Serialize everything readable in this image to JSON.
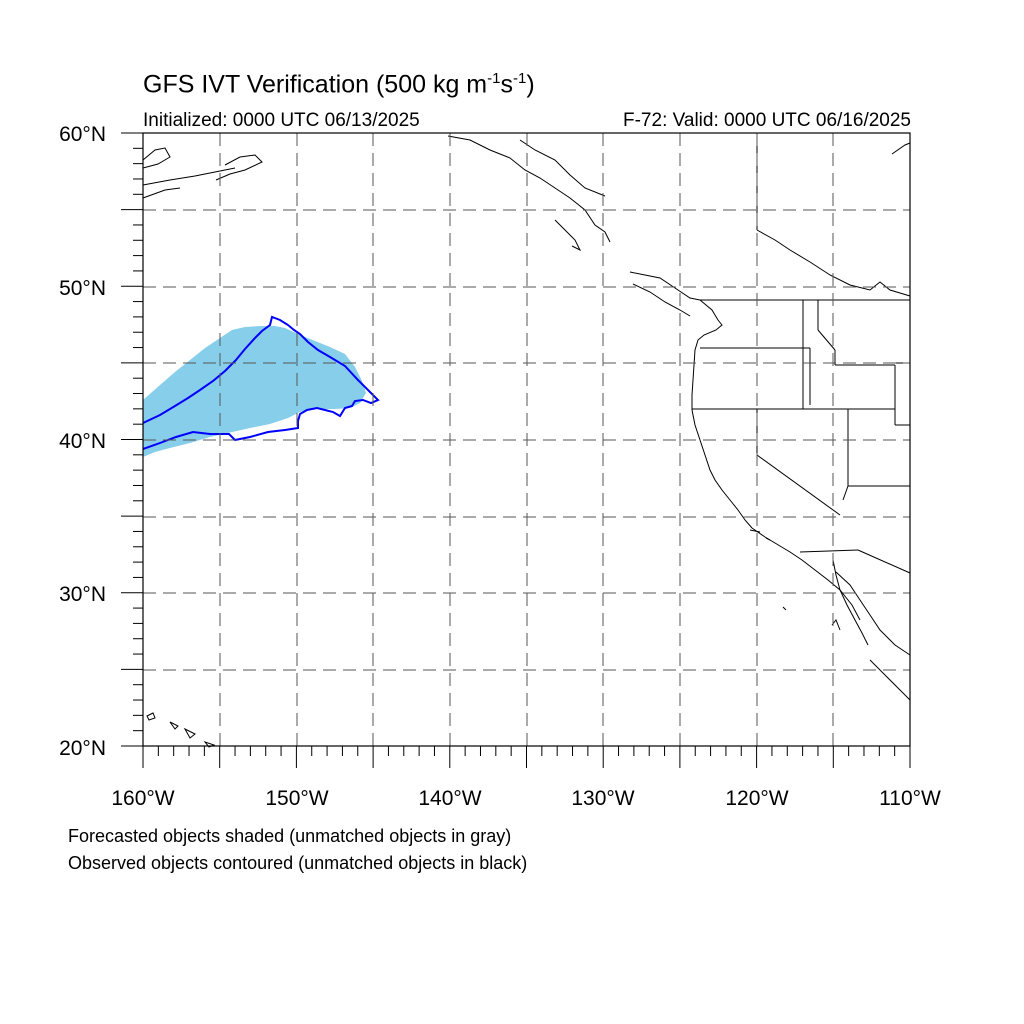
{
  "title": {
    "text": "GFS IVT Verification (500 kg m",
    "sup1": "-1",
    "mid": "s",
    "sup2": "-1",
    "end": ")"
  },
  "subtitle_left": "Initialized: 0000 UTC 06/13/2025",
  "subtitle_right": "F-72: Valid: 0000 UTC 06/16/2025",
  "lat_labels": [
    "60°N",
    "50°N",
    "40°N",
    "30°N",
    "20°N"
  ],
  "lon_labels": [
    "160°W",
    "150°W",
    "140°W",
    "130°W",
    "120°W",
    "110°W"
  ],
  "notes": [
    "Forecasted objects shaded (unmatched objects in gray)",
    "Observed objects contoured (unmatched objects in black)"
  ],
  "colors": {
    "forecast_fill": "#87ceeb",
    "observed_contour": "#0000ff",
    "coastline": "#000000",
    "grid": "#555555"
  }
}
